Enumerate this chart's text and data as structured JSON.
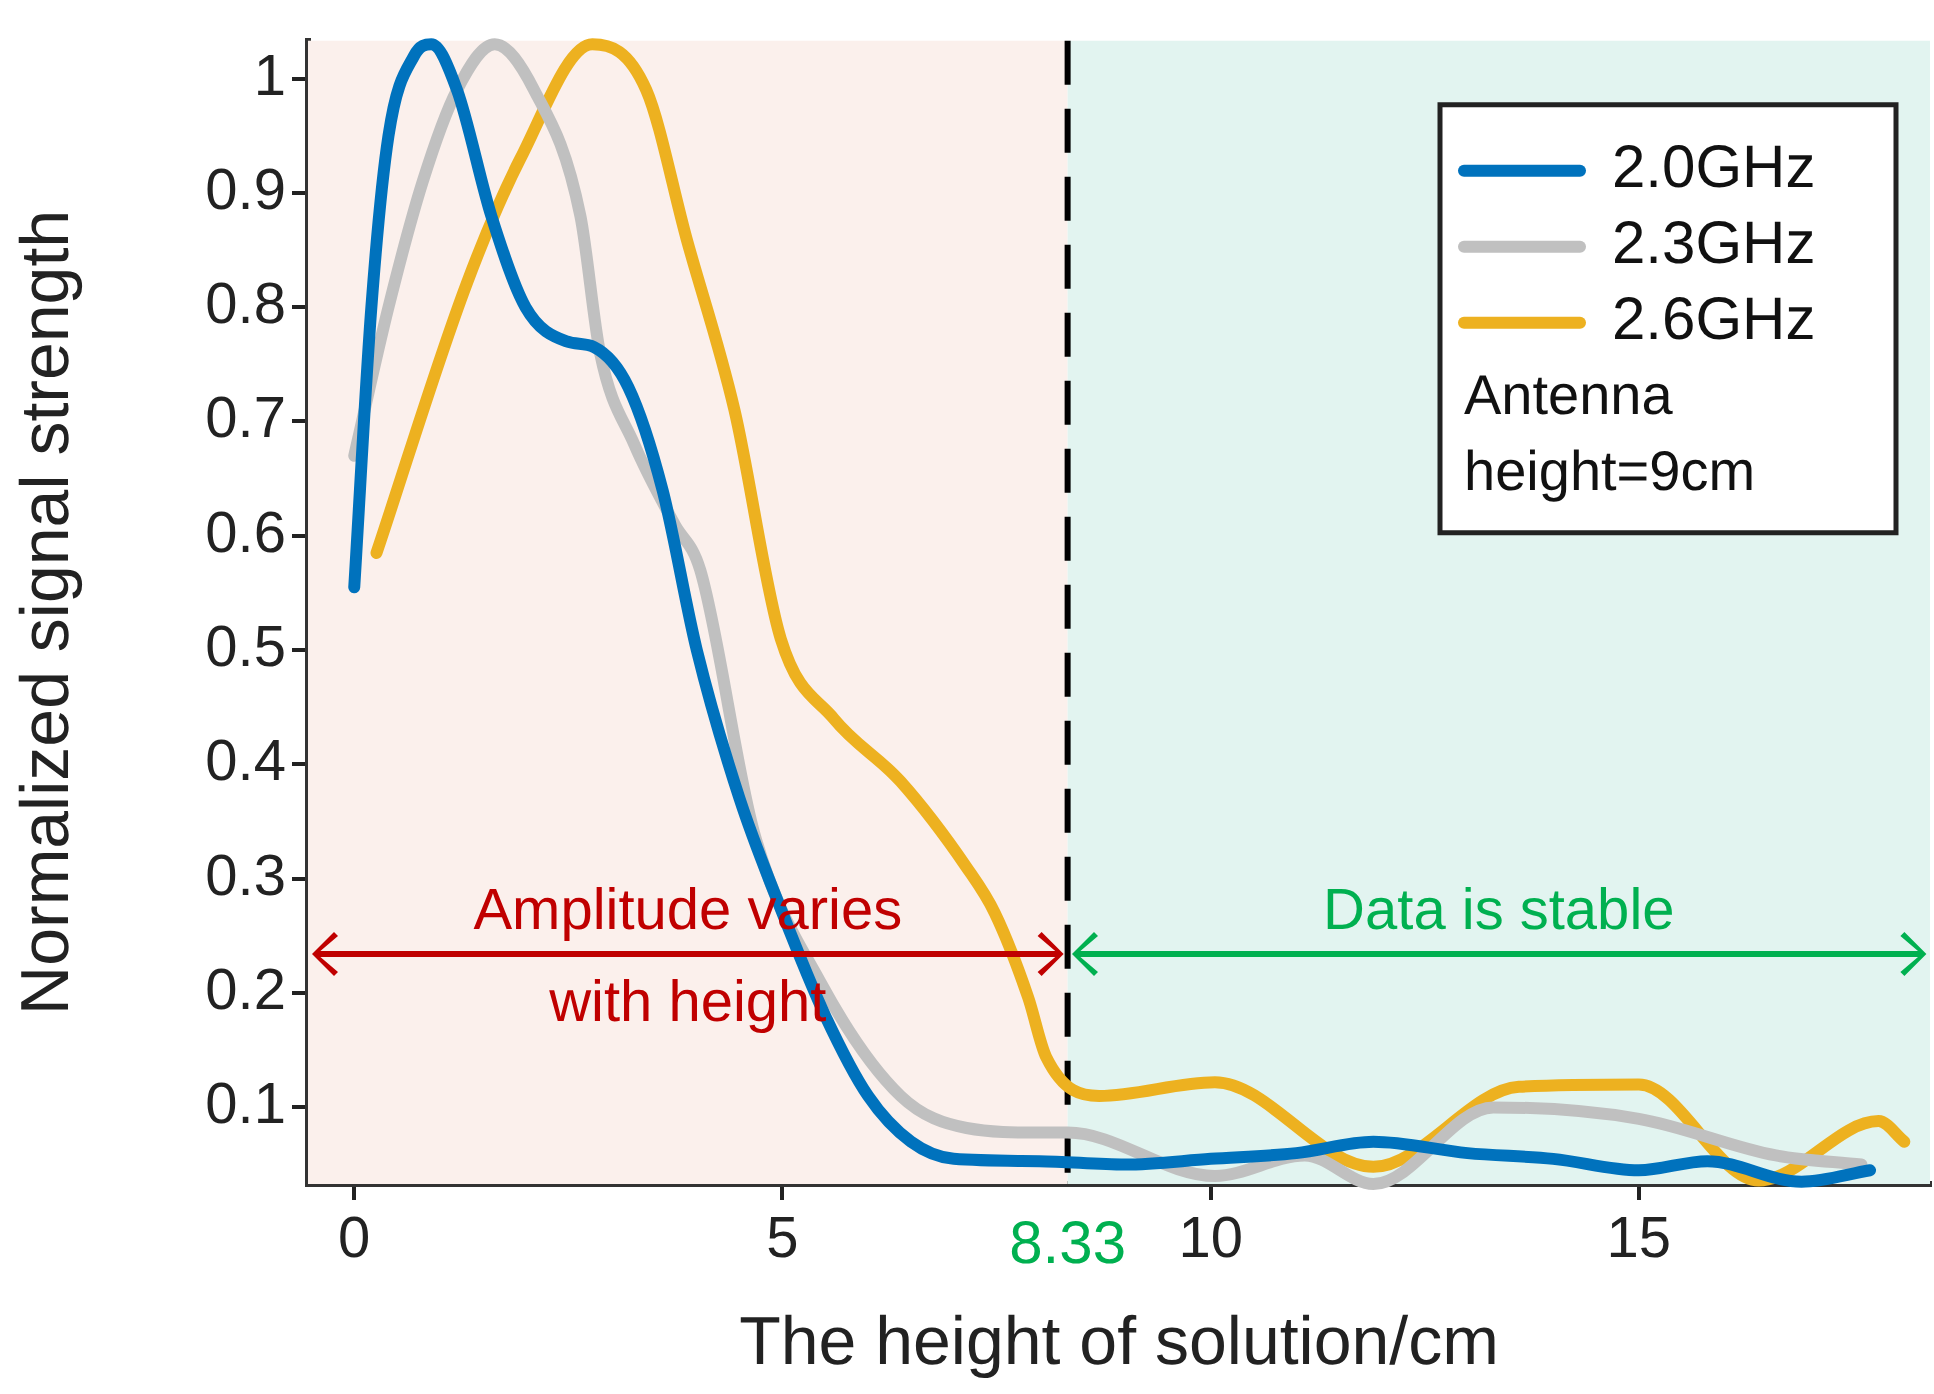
{
  "chart_data": {
    "type": "line",
    "xlabel": "The height of solution/cm",
    "ylabel": "Normalized signal strength",
    "xlim": [
      -0.54,
      18.4
    ],
    "xticks": [
      0,
      5,
      10,
      15
    ],
    "ylim": [
      0.033,
      1.033
    ],
    "yticks": [
      0.1,
      0.2,
      0.3,
      0.4,
      0.5,
      0.6,
      0.7,
      0.8,
      0.9,
      1
    ],
    "grid": false,
    "legend": "top right",
    "line_style": "solid",
    "marker": "none",
    "annotations": [
      "Antenna height=9cm"
    ],
    "ref_lines": [
      {
        "axis": "x",
        "value": 8.33,
        "label": "8.33",
        "color": "#000000",
        "line_style": "dashed"
      }
    ],
    "bands": [
      {
        "axis": "x",
        "from": -0.54,
        "to": 8.33,
        "label": "Amplitude varies with height",
        "color": "#fbf0ec"
      },
      {
        "axis": "x",
        "from": 8.33,
        "to": 18.4,
        "label": "Data is stable",
        "color": "#e2f4f0"
      }
    ],
    "series": [
      {
        "name": "2.0GHz",
        "color": "#0072bd",
        "x": [
          0,
          0.2,
          0.4,
          0.7,
          0.9,
          1.2,
          1.6,
          2.0,
          2.48,
          2.8,
          3.2,
          3.6,
          4.0,
          4.5,
          5,
          5.5,
          6,
          6.5,
          7,
          8,
          9,
          10,
          11,
          11.9,
          13,
          14,
          15,
          15.8,
          16.9,
          17.7
        ],
        "values": [
          0.555,
          0.8,
          0.95,
          1.02,
          1.03,
          0.99,
          0.88,
          0.8,
          0.77,
          0.765,
          0.73,
          0.64,
          0.5,
          0.37,
          0.27,
          0.18,
          0.11,
          0.07,
          0.055,
          0.053,
          0.05,
          0.055,
          0.06,
          0.07,
          0.06,
          0.055,
          0.045,
          0.053,
          0.035,
          0.045
        ]
      },
      {
        "name": "2.3GHz",
        "color": "#c0c0c0",
        "x": [
          0,
          0.4,
          0.8,
          1.2,
          1.64,
          2.1,
          2.64,
          2.87,
          3.27,
          3.74,
          4.04,
          4.67,
          5.44,
          6.38,
          7.15,
          8.0,
          8.33,
          10.05,
          11.1,
          11.9,
          13.3,
          15.0,
          16.6,
          17.6
        ],
        "values": [
          0.67,
          0.8,
          0.91,
          0.99,
          1.03,
          0.99,
          0.88,
          0.76,
          0.68,
          0.61,
          0.57,
          0.34,
          0.21,
          0.11,
          0.082,
          0.078,
          0.078,
          0.04,
          0.058,
          0.033,
          0.1,
          0.09,
          0.058,
          0.05
        ]
      },
      {
        "name": "2.6GHz",
        "color": "#edb120",
        "x": [
          0.26,
          1.31,
          1.94,
          2.78,
          3.41,
          3.88,
          4.44,
          4.98,
          5.6,
          6.38,
          7.15,
          7.48,
          7.87,
          8.08,
          8.7,
          10.05,
          11.9,
          13.6,
          15.0,
          16.4,
          17.8,
          18.1
        ],
        "values": [
          0.585,
          0.82,
          0.93,
          1.03,
          0.99,
          0.86,
          0.71,
          0.51,
          0.44,
          0.385,
          0.31,
          0.27,
          0.196,
          0.144,
          0.11,
          0.122,
          0.048,
          0.118,
          0.12,
          0.036,
          0.088,
          0.07
        ]
      }
    ]
  }
}
